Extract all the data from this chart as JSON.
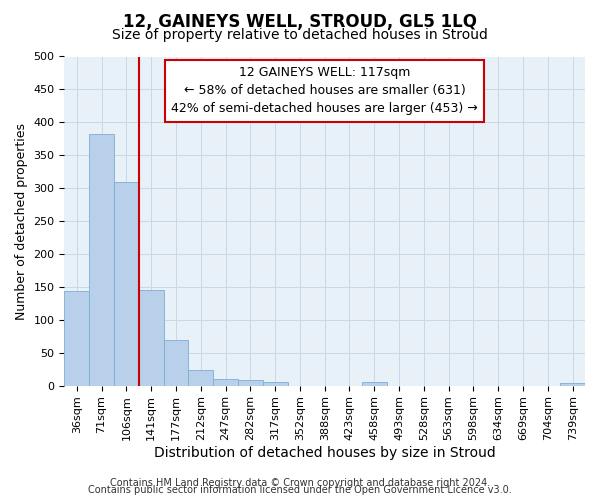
{
  "title": "12, GAINEYS WELL, STROUD, GL5 1LQ",
  "subtitle": "Size of property relative to detached houses in Stroud",
  "xlabel": "Distribution of detached houses by size in Stroud",
  "ylabel": "Number of detached properties",
  "bar_labels": [
    "36sqm",
    "71sqm",
    "106sqm",
    "141sqm",
    "177sqm",
    "212sqm",
    "247sqm",
    "282sqm",
    "317sqm",
    "352sqm",
    "388sqm",
    "423sqm",
    "458sqm",
    "493sqm",
    "528sqm",
    "563sqm",
    "598sqm",
    "634sqm",
    "669sqm",
    "704sqm",
    "739sqm"
  ],
  "bar_values": [
    143,
    383,
    310,
    146,
    70,
    24,
    10,
    8,
    5,
    0,
    0,
    0,
    5,
    0,
    0,
    0,
    0,
    0,
    0,
    0,
    4
  ],
  "bar_color": "#b8d0ea",
  "bar_edge_color": "#7aafd4",
  "vline_x_index": 2,
  "vline_color": "#cc0000",
  "annotation_title": "12 GAINEYS WELL: 117sqm",
  "annotation_line1": "← 58% of detached houses are smaller (631)",
  "annotation_line2": "42% of semi-detached houses are larger (453) →",
  "annotation_box_facecolor": "#ffffff",
  "annotation_box_edgecolor": "#cc0000",
  "ylim": [
    0,
    500
  ],
  "yticks": [
    0,
    50,
    100,
    150,
    200,
    250,
    300,
    350,
    400,
    450,
    500
  ],
  "grid_color": "#c8d8e8",
  "plot_bg_color": "#e8f0f8",
  "footer_line1": "Contains HM Land Registry data © Crown copyright and database right 2024.",
  "footer_line2": "Contains public sector information licensed under the Open Government Licence v3.0.",
  "title_fontsize": 12,
  "subtitle_fontsize": 10,
  "xlabel_fontsize": 10,
  "ylabel_fontsize": 9,
  "tick_fontsize": 8,
  "annot_fontsize": 9,
  "footer_fontsize": 7
}
